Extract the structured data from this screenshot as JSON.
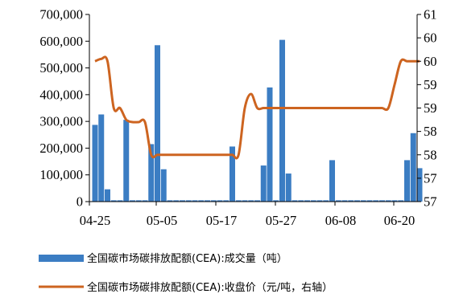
{
  "chart_data": {
    "type": "bar+line",
    "x_ticks": [
      "04-25",
      "05-05",
      "05-17",
      "05-27",
      "06-08",
      "06-20"
    ],
    "y_left": {
      "min": 0,
      "max": 700000,
      "ticks": [
        "0",
        "100,000",
        "200,000",
        "300,000",
        "400,000",
        "500,000",
        "600,000",
        "700,000"
      ]
    },
    "y_right": {
      "min": 57,
      "max": 61,
      "ticks": [
        "57",
        "57",
        "58",
        "58",
        "59",
        "59",
        "60",
        "60",
        "61"
      ]
    },
    "grid": false,
    "legend_position": "bottom",
    "series": [
      {
        "name": "全国碳市场碳排放配额(CEA):成交量（吨）",
        "type": "bar",
        "axis": "left",
        "color": "#3b7dc3",
        "values": [
          287000,
          326000,
          46000,
          5000,
          5000,
          306000,
          5000,
          5000,
          5000,
          215000,
          585000,
          121000,
          5000,
          5000,
          5000,
          5000,
          5000,
          5000,
          5000,
          5000,
          5000,
          5000,
          206000,
          5000,
          5000,
          5000,
          5000,
          135000,
          427000,
          5000,
          605000,
          105000,
          5000,
          5000,
          5000,
          5000,
          5000,
          5000,
          155000,
          5000,
          5000,
          5000,
          5000,
          5000,
          5000,
          5000,
          5000,
          5000,
          5000,
          5000,
          155000,
          256000,
          125000
        ]
      },
      {
        "name": "全国碳市场碳排放配额(CEA):收盘价（元/吨，右轴）",
        "type": "line",
        "axis": "right",
        "color": "#cd6420",
        "values": [
          60.0,
          60.05,
          60.0,
          59.0,
          59.0,
          58.75,
          58.7,
          58.7,
          58.7,
          58.0,
          58.0,
          58.0,
          58.0,
          58.0,
          58.0,
          58.0,
          58.0,
          58.0,
          58.0,
          58.0,
          58.0,
          58.0,
          58.0,
          58.0,
          59.0,
          59.3,
          59.0,
          59.0,
          59.0,
          59.0,
          59.0,
          59.0,
          59.0,
          59.0,
          59.0,
          59.0,
          59.0,
          59.0,
          59.0,
          59.0,
          59.0,
          59.0,
          59.0,
          59.0,
          59.0,
          59.0,
          59.0,
          59.0,
          59.5,
          60.0,
          60.0,
          60.0,
          60.0
        ]
      }
    ]
  }
}
